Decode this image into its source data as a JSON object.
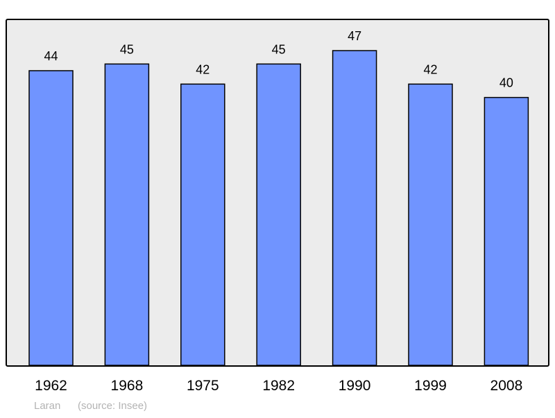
{
  "chart_data": {
    "type": "bar",
    "categories": [
      "1962",
      "1968",
      "1975",
      "1982",
      "1990",
      "1999",
      "2008"
    ],
    "values": [
      44,
      45,
      42,
      45,
      47,
      42,
      40
    ],
    "title": "",
    "xlabel": "",
    "ylabel": "",
    "ylim": [
      0,
      51.6
    ],
    "grid": false,
    "data_labels": true,
    "colors": {
      "bar": "#7094ff",
      "background": "#ececec",
      "frame": "#000000",
      "caption": "#b3b3b3"
    }
  },
  "caption": {
    "place": "Laran",
    "source": "(source: Insee)"
  }
}
